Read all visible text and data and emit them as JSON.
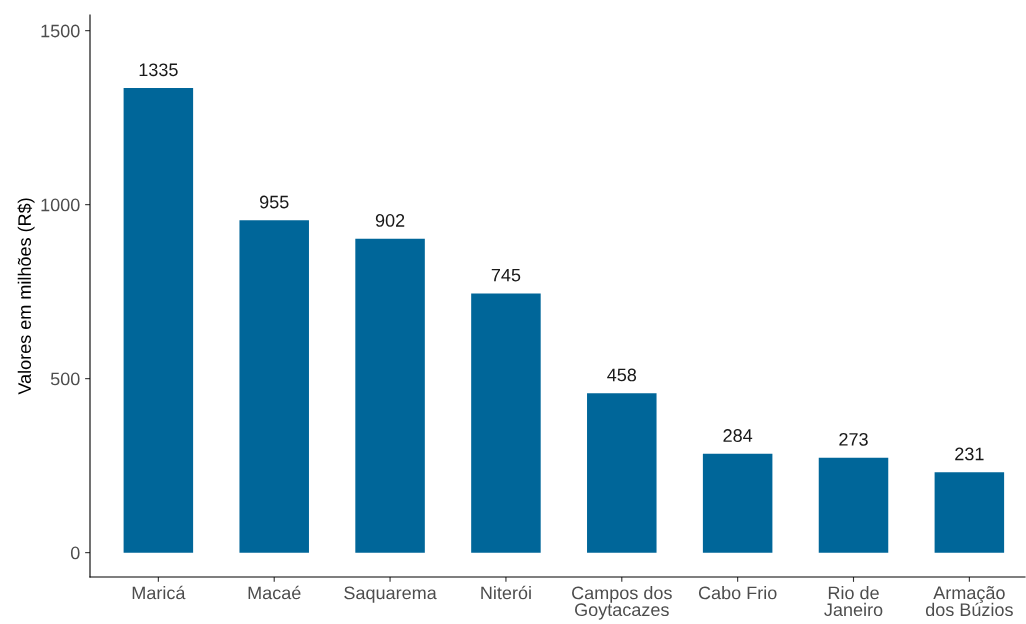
{
  "chart_data": {
    "type": "bar",
    "ylabel": "Valores em milhões (R$)",
    "categories": [
      "Maricá",
      "Macaé",
      "Saquarema",
      "Niterói",
      "Campos dos\nGoytacazes",
      "Cabo Frio",
      "Rio de\nJaneiro",
      "Armação\ndos Búzios"
    ],
    "values": [
      1335,
      955,
      902,
      745,
      458,
      284,
      273,
      231
    ],
    "color": "#006699",
    "ylim": [
      -70,
      1545
    ],
    "yticks": [
      0,
      500,
      1000,
      1500
    ],
    "grid": false,
    "data_labels": true
  }
}
